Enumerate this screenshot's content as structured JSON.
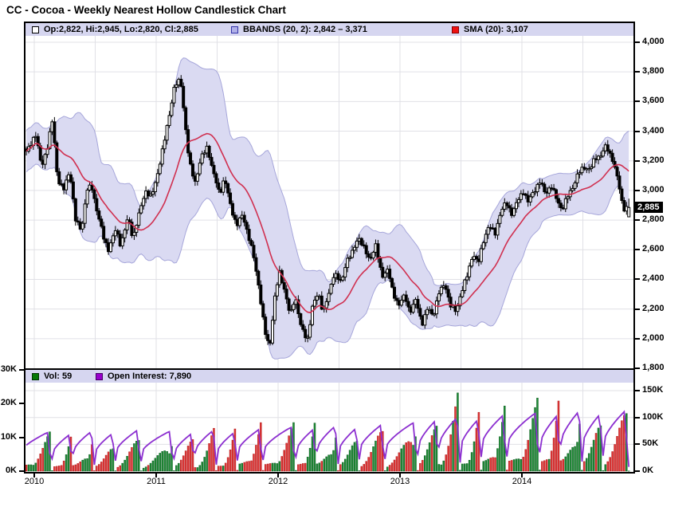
{
  "title": "CC - Cocoa - Weekly Nearest Hollow Candlestick Chart",
  "price_tag": "2,885",
  "main_legend": {
    "items": [
      {
        "icon": "candlestick-swatch",
        "label": "Op:2,822, Hi:2,945, Lo:2,820, Cl:2,885"
      },
      {
        "icon": "bbands-swatch",
        "label": "BBANDS (20, 2): 2,842 – 3,371"
      },
      {
        "icon": "sma-swatch",
        "label": "SMA (20): 3,107"
      }
    ]
  },
  "volume_legend": {
    "items": [
      {
        "icon": "volume-swatch",
        "label": "Vol: 59"
      },
      {
        "icon": "open-interest-swatch",
        "label": "Open Interest: 7,890"
      }
    ]
  },
  "axes": {
    "price_ticks": [
      {
        "label": "4,000",
        "value": 4000
      },
      {
        "label": "3,800",
        "value": 3800
      },
      {
        "label": "3,600",
        "value": 3600
      },
      {
        "label": "3,400",
        "value": 3400
      },
      {
        "label": "3,200",
        "value": 3200
      },
      {
        "label": "3,000",
        "value": 3000
      },
      {
        "label": "2,800",
        "value": 2800
      },
      {
        "label": "2,600",
        "value": 2600
      },
      {
        "label": "2,400",
        "value": 2400
      },
      {
        "label": "2,200",
        "value": 2200
      },
      {
        "label": "2,000",
        "value": 2000
      },
      {
        "label": "1,800",
        "value": 1800
      }
    ],
    "x_ticks": [
      {
        "label": "2010",
        "year": 0
      },
      {
        "label": "2011",
        "year": 1
      },
      {
        "label": "2012",
        "year": 2
      },
      {
        "label": "2013",
        "year": 3
      },
      {
        "label": "2014",
        "year": 4
      }
    ],
    "vol_left_ticks": [
      {
        "label": "30K",
        "value": 30
      },
      {
        "label": "20K",
        "value": 20
      },
      {
        "label": "10K",
        "value": 10
      },
      {
        "label": "0K",
        "value": 0
      }
    ],
    "vol_right_ticks": [
      {
        "label": "150K",
        "value": 150
      },
      {
        "label": "100K",
        "value": 100
      },
      {
        "label": "50K",
        "value": 50
      },
      {
        "label": "0K",
        "value": 0
      }
    ]
  },
  "colors": {
    "up_candle": "#ffffff",
    "down_candle": "#000000",
    "candle_outline": "#000000",
    "bband_fill": "#dadaf2",
    "bband_edge": "#a6a6da",
    "sma": "#d03050",
    "vol_up": "#1f8c36",
    "vol_up_edge": "#0c5c20",
    "vol_down": "#e03838",
    "vol_down_edge": "#b01818",
    "open_interest": "#8c2fd0",
    "legend_strip": "#d6d6f0",
    "grid": "#e0e0e6",
    "price_tag_bg": "#000000",
    "price_tag_text": "#ffffff"
  },
  "chart_data": [
    {
      "type": "candlestick",
      "title": "CC Cocoa weekly nearest, hollow candles with BBANDS(20,2) and SMA(20)",
      "ylim": [
        1800,
        4000
      ],
      "x_range_years": [
        -0.065,
        4.883
      ],
      "grid": true,
      "last_candle": {
        "open": 2822,
        "high": 2945,
        "low": 2820,
        "close": 2885
      },
      "bbands_current": {
        "lower": 2842,
        "upper": 3371,
        "period": 20,
        "stdev": 2
      },
      "sma_current": {
        "period": 20,
        "value": 3107
      },
      "close_anchors": [
        [
          -0.07,
          3250
        ],
        [
          0.01,
          3380
        ],
        [
          0.06,
          3160
        ],
        [
          0.11,
          3300
        ],
        [
          0.15,
          3480
        ],
        [
          0.19,
          3080
        ],
        [
          0.24,
          3000
        ],
        [
          0.29,
          3140
        ],
        [
          0.34,
          2790
        ],
        [
          0.39,
          2740
        ],
        [
          0.43,
          3000
        ],
        [
          0.47,
          3030
        ],
        [
          0.52,
          2840
        ],
        [
          0.57,
          2680
        ],
        [
          0.61,
          2600
        ],
        [
          0.67,
          2740
        ],
        [
          0.71,
          2630
        ],
        [
          0.77,
          2820
        ],
        [
          0.81,
          2680
        ],
        [
          0.86,
          2840
        ],
        [
          0.91,
          3000
        ],
        [
          0.96,
          2950
        ],
        [
          1.01,
          3110
        ],
        [
          1.06,
          3300
        ],
        [
          1.1,
          3480
        ],
        [
          1.15,
          3700
        ],
        [
          1.2,
          3750
        ],
        [
          1.24,
          3430
        ],
        [
          1.27,
          3190
        ],
        [
          1.32,
          3060
        ],
        [
          1.37,
          3220
        ],
        [
          1.42,
          3300
        ],
        [
          1.46,
          3140
        ],
        [
          1.52,
          2980
        ],
        [
          1.56,
          3080
        ],
        [
          1.61,
          2900
        ],
        [
          1.66,
          2760
        ],
        [
          1.71,
          2840
        ],
        [
          1.76,
          2680
        ],
        [
          1.8,
          2550
        ],
        [
          1.84,
          2360
        ],
        [
          1.89,
          2050
        ],
        [
          1.93,
          1940
        ],
        [
          1.97,
          2260
        ],
        [
          2.01,
          2450
        ],
        [
          2.05,
          2340
        ],
        [
          2.1,
          2150
        ],
        [
          2.14,
          2290
        ],
        [
          2.19,
          2070
        ],
        [
          2.24,
          1990
        ],
        [
          2.28,
          2210
        ],
        [
          2.33,
          2310
        ],
        [
          2.37,
          2180
        ],
        [
          2.42,
          2310
        ],
        [
          2.46,
          2450
        ],
        [
          2.52,
          2370
        ],
        [
          2.56,
          2530
        ],
        [
          2.61,
          2580
        ],
        [
          2.66,
          2690
        ],
        [
          2.71,
          2600
        ],
        [
          2.75,
          2530
        ],
        [
          2.8,
          2630
        ],
        [
          2.85,
          2420
        ],
        [
          2.9,
          2470
        ],
        [
          2.94,
          2310
        ],
        [
          2.99,
          2230
        ],
        [
          3.04,
          2290
        ],
        [
          3.08,
          2180
        ],
        [
          3.13,
          2260
        ],
        [
          3.18,
          2100
        ],
        [
          3.23,
          2210
        ],
        [
          3.27,
          2150
        ],
        [
          3.32,
          2310
        ],
        [
          3.37,
          2370
        ],
        [
          3.41,
          2230
        ],
        [
          3.46,
          2180
        ],
        [
          3.5,
          2310
        ],
        [
          3.55,
          2420
        ],
        [
          3.6,
          2580
        ],
        [
          3.64,
          2500
        ],
        [
          3.69,
          2680
        ],
        [
          3.73,
          2760
        ],
        [
          3.78,
          2710
        ],
        [
          3.82,
          2840
        ],
        [
          3.87,
          2920
        ],
        [
          3.92,
          2840
        ],
        [
          3.96,
          2920
        ],
        [
          4.01,
          3000
        ],
        [
          4.05,
          2920
        ],
        [
          4.1,
          3000
        ],
        [
          4.15,
          3060
        ],
        [
          4.19,
          2980
        ],
        [
          4.24,
          3030
        ],
        [
          4.28,
          2950
        ],
        [
          4.33,
          2870
        ],
        [
          4.37,
          2950
        ],
        [
          4.42,
          3030
        ],
        [
          4.46,
          3110
        ],
        [
          4.51,
          3160
        ],
        [
          4.56,
          3140
        ],
        [
          4.6,
          3220
        ],
        [
          4.65,
          3240
        ],
        [
          4.69,
          3300
        ],
        [
          4.74,
          3220
        ],
        [
          4.79,
          3060
        ],
        [
          4.83,
          2880
        ],
        [
          4.88,
          2885
        ]
      ]
    },
    {
      "type": "bar",
      "title": "Weekly volume (green/red, left scale K) and open interest line (purple, right scale K)",
      "ylim_left_K": [
        0,
        30
      ],
      "ylim_right_K": [
        0,
        150
      ],
      "current": {
        "volume": 59,
        "open_interest": 7890
      },
      "roll_fractions_per_year": [
        0.14,
        0.31,
        0.49,
        0.66,
        0.87
      ],
      "vol_peaks_K": [
        13,
        12,
        14,
        13,
        15,
        14,
        15,
        16,
        15,
        17,
        16,
        17,
        18,
        17,
        19,
        20,
        21,
        29,
        21,
        23,
        24,
        25,
        26,
        25,
        27,
        5
      ],
      "oi_peaks_K": [
        72,
        68,
        74,
        70,
        76,
        74,
        70,
        76,
        72,
        78,
        82,
        78,
        84,
        80,
        86,
        90,
        94,
        100,
        96,
        104,
        108,
        104,
        112,
        106,
        112,
        112
      ]
    }
  ]
}
